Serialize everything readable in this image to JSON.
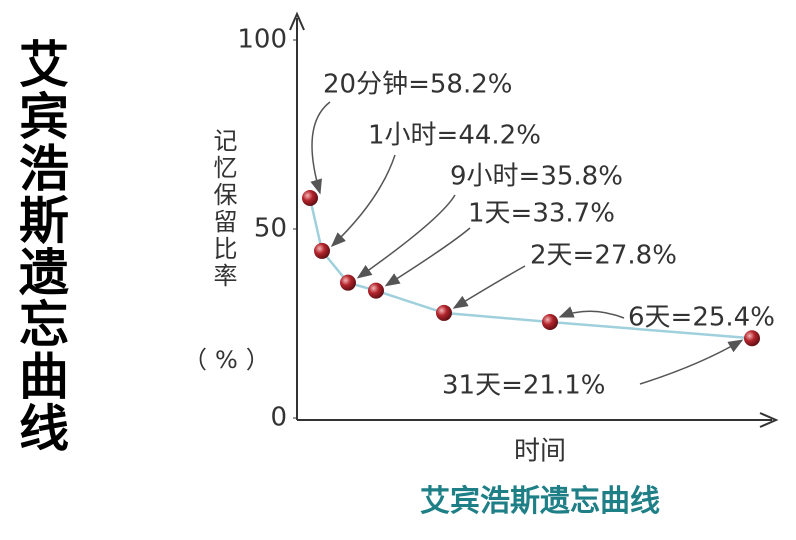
{
  "chart_data": {
    "type": "line",
    "title": "艾宾浩斯遗忘曲线",
    "side_title": "艾宾浩斯遗忘曲线",
    "x_label": "时间",
    "y_label": "记忆保留比率",
    "y_unit": "（%）",
    "categories": [
      null,
      null,
      null,
      null,
      null,
      null,
      null
    ],
    "values": [
      58.2,
      44.2,
      35.8,
      33.7,
      27.8,
      25.4,
      21.1
    ],
    "value_labels": [
      "20分钟=58.2%",
      "1小时=44.2%",
      "9小时=35.8%",
      "1天=33.7%",
      "2天=27.8%",
      "6天=25.4%",
      "31天=21.1%"
    ],
    "color": "#b3242c",
    "line_color": "#9fd0dc",
    "ylim": [
      0,
      100
    ],
    "yticks": [
      0,
      50,
      100
    ]
  }
}
